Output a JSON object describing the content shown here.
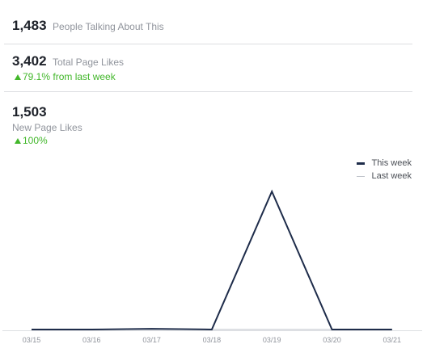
{
  "stats": {
    "talking": {
      "value": "1,483",
      "label": "People Talking About This"
    },
    "total_likes": {
      "value": "3,402",
      "label": "Total Page Likes",
      "change": "79.1% from last week"
    },
    "new_likes": {
      "value": "1,503",
      "label": "New Page Likes",
      "change": "100%"
    }
  },
  "colors": {
    "this_week": "#1e2c4a",
    "last_week": "#bec2c9",
    "positive": "#42b72a"
  },
  "icons": {
    "change_up": "up-triangle-icon"
  },
  "chart_data": {
    "type": "line",
    "categories": [
      "03/15",
      "03/16",
      "03/17",
      "03/18",
      "03/19",
      "03/20",
      "03/21"
    ],
    "series": [
      {
        "name": "This week",
        "values": [
          0,
          0,
          8,
          0,
          1490,
          0,
          0
        ]
      },
      {
        "name": "Last week",
        "values": [
          0,
          0,
          0,
          0,
          0,
          0,
          0
        ]
      }
    ],
    "ylim": [
      0,
      1500
    ],
    "legend_position": "top-right",
    "grid": false
  }
}
